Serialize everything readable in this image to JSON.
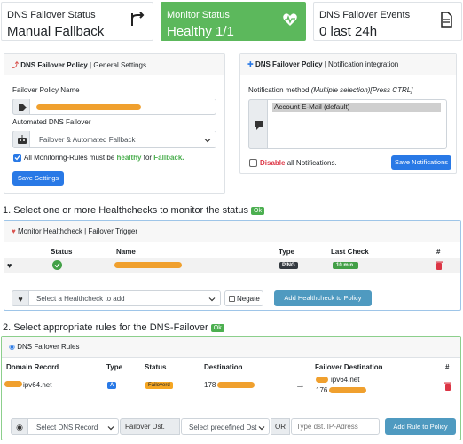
{
  "status_cards": {
    "failover_status": {
      "label": "DNS Failover Status",
      "value": "Manual Fallback"
    },
    "monitor_status": {
      "label": "Monitor Status",
      "value": "Healthy 1/1"
    },
    "failover_events": {
      "label": "DNS Failover Events",
      "value": "0 last 24h"
    }
  },
  "policy_panel": {
    "title_bold": "DNS Failover Policy",
    "title_rest": " | General Settings",
    "policy_name_label": "Failover Policy Name",
    "auto_failover_label": "Automated DNS Failover",
    "auto_failover_value": "Failover & Automated Fallback",
    "checkbox_text_1": "All Monitoring-Rules must be ",
    "checkbox_healthy": "healthy",
    "checkbox_text_2": " for ",
    "checkbox_fallback": "Fallback.",
    "save_button": "Save Settings"
  },
  "notification_panel": {
    "title_bold": "DNS Failover Policy",
    "title_rest": " | Notification integration",
    "method_label": "Notification method ",
    "method_hint": "(Multiple selection)[Press CTRL]",
    "options": [
      "Account E-Mail (default)"
    ],
    "disable_bold": "Disable",
    "disable_rest": " all Notifications.",
    "save_button": "Save Notifications"
  },
  "section1": {
    "title": "1. Select one or more Healthchecks to monitor the status ",
    "badge": "Ok"
  },
  "healthcheck_panel": {
    "title": "Monitor Healthcheck | Failover Trigger",
    "headers": {
      "status": "Status",
      "name": "Name",
      "type": "Type",
      "last_check": "Last Check",
      "hash": "#"
    },
    "row": {
      "type": "PING",
      "last_check": "10 min."
    },
    "select_placeholder": "Select a Healthcheck to add",
    "negate_label": "Negate",
    "add_button": "Add Healthcheck to Policy"
  },
  "section2": {
    "title": "2. Select appropriate rules for the DNS-Failover ",
    "badge": "Ok"
  },
  "rules_panel": {
    "title": "DNS Failover Rules",
    "headers": {
      "domain": "Domain Record",
      "type": "Type",
      "status": "Status",
      "destination": "Destination",
      "failover_dest": "Failover Destination",
      "hash": "#"
    },
    "row": {
      "domain": "ipv64.net",
      "type": "A",
      "status": "Failoverd",
      "destination": "178",
      "arrow": "→",
      "failover_line1": "ipv64.net",
      "failover_line2": "176"
    },
    "select_dns": "Select DNS Record",
    "failover_dst_label": "Failover Dst.",
    "select_predefined": "Select predefined Dst",
    "or_label": "OR",
    "ip_placeholder": "Type dst. IP-Adress",
    "add_button": "Add Rule to Policy"
  },
  "colors": {
    "accent_green": "#4caf50",
    "accent_blue": "#2979e6",
    "teal": "#4f9ac0",
    "danger": "#dc3545"
  }
}
